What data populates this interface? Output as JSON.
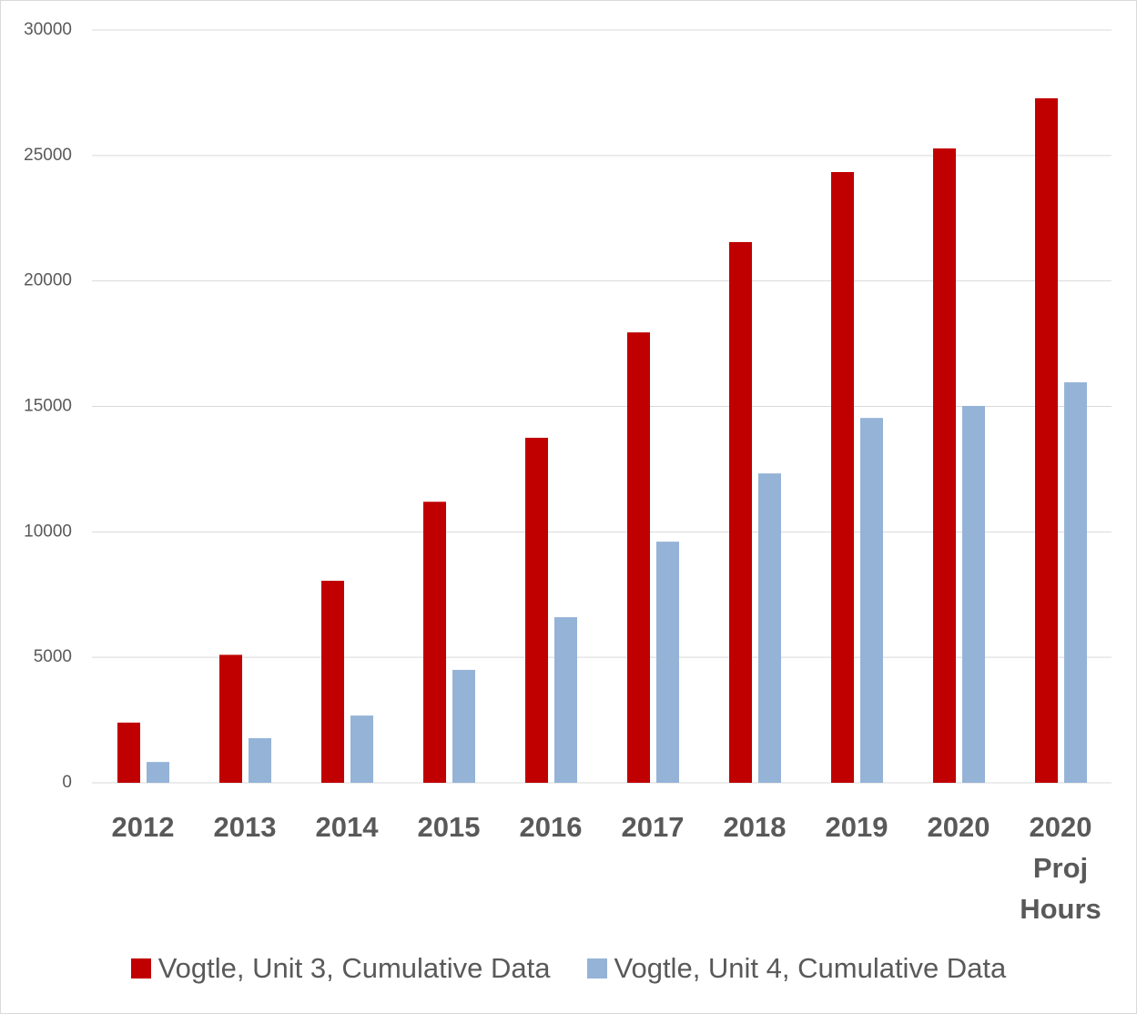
{
  "chart_data": {
    "type": "bar",
    "categories": [
      "2012",
      "2013",
      "2014",
      "2015",
      "2016",
      "2017",
      "2018",
      "2019",
      "2020",
      "2020 Proj Hours"
    ],
    "series": [
      {
        "name": "Vogtle, Unit 3, Cumulative Data",
        "color": "#c00000",
        "values": [
          2400,
          5100,
          8050,
          11200,
          13750,
          17950,
          21550,
          24340,
          25280,
          27280
        ]
      },
      {
        "name": "Vogtle, Unit 4, Cumulative Data",
        "color": "#95b3d7",
        "values": [
          830,
          1780,
          2680,
          4500,
          6600,
          9610,
          12330,
          14540,
          15020,
          15960
        ]
      }
    ],
    "ylim": [
      0,
      30000
    ],
    "yticks": [
      0,
      5000,
      10000,
      15000,
      20000,
      25000,
      30000
    ],
    "grid": true
  }
}
